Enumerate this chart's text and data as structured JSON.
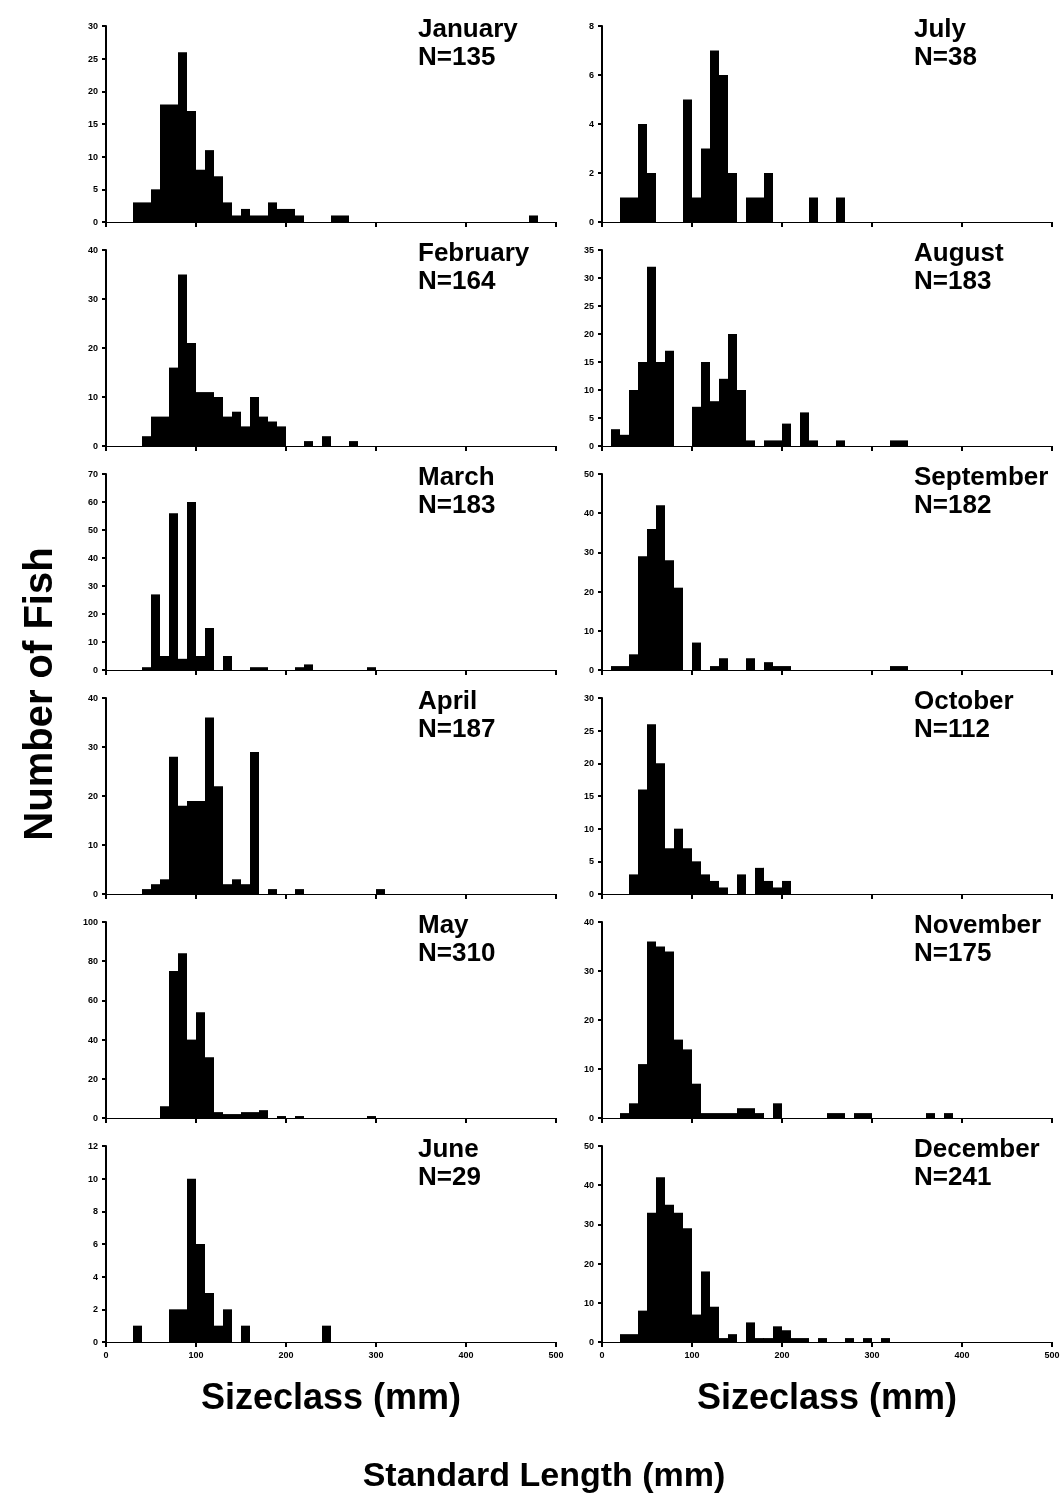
{
  "chart_data": [
    {
      "type": "histogram",
      "title": "January",
      "subtitle": "N=135",
      "color": "#000000",
      "tick_labels": "y",
      "xlim": [
        0,
        500
      ],
      "xticks": [
        0,
        100,
        200,
        300,
        400,
        500
      ],
      "ylim": [
        0,
        30
      ],
      "yticks": [
        0,
        5,
        10,
        15,
        20,
        25,
        30
      ],
      "bins": [
        30,
        40,
        50,
        60,
        70,
        80,
        90,
        100,
        110,
        120,
        130,
        140,
        150,
        160,
        170,
        180,
        190,
        200,
        210,
        220,
        230,
        240,
        250,
        260,
        270,
        280,
        290,
        300,
        310,
        320,
        330,
        340,
        350,
        360,
        370,
        380,
        390,
        400,
        410,
        420,
        430,
        440,
        450,
        460,
        470,
        480
      ],
      "values": [
        3,
        3,
        5,
        18,
        18,
        26,
        17,
        8,
        11,
        7,
        3,
        1,
        2,
        1,
        1,
        3,
        2,
        2,
        1,
        0,
        0,
        0,
        1,
        1,
        0,
        0,
        0,
        0,
        0,
        0,
        0,
        0,
        0,
        0,
        0,
        0,
        0,
        0,
        0,
        0,
        0,
        0,
        0,
        0,
        1
      ]
    },
    {
      "type": "histogram",
      "title": "July",
      "subtitle": "N=38",
      "color": "#000000",
      "tick_labels": "y",
      "xlim": [
        0,
        500
      ],
      "xticks": [
        0,
        100,
        200,
        300,
        400,
        500
      ],
      "ylim": [
        0,
        8
      ],
      "yticks": [
        0,
        2,
        4,
        6,
        8
      ],
      "bins": [
        20,
        30,
        40,
        50,
        60,
        70,
        80,
        90,
        100,
        110,
        120,
        130,
        140,
        150,
        160,
        170,
        180,
        190,
        200,
        210,
        220,
        230,
        240,
        250,
        260,
        270
      ],
      "values": [
        1,
        1,
        4,
        2,
        0,
        0,
        0,
        5,
        1,
        3,
        7,
        6,
        2,
        0,
        1,
        1,
        2,
        0,
        0,
        0,
        0,
        1,
        0,
        0,
        1
      ]
    },
    {
      "type": "histogram",
      "title": "February",
      "subtitle": "N=164",
      "color": "#000000",
      "tick_labels": "y",
      "xlim": [
        0,
        500
      ],
      "xticks": [
        0,
        100,
        200,
        300,
        400,
        500
      ],
      "ylim": [
        0,
        40
      ],
      "yticks": [
        0,
        10,
        20,
        30,
        40
      ],
      "bins": [
        40,
        50,
        60,
        70,
        80,
        90,
        100,
        110,
        120,
        130,
        140,
        150,
        160,
        170,
        180,
        190,
        200,
        210,
        220,
        230,
        240,
        250,
        260,
        270,
        280
      ],
      "values": [
        2,
        6,
        6,
        16,
        35,
        21,
        11,
        11,
        10,
        6,
        7,
        4,
        10,
        6,
        5,
        4,
        0,
        0,
        1,
        0,
        2,
        0,
        0,
        1
      ]
    },
    {
      "type": "histogram",
      "title": "August",
      "subtitle": "N=183",
      "color": "#000000",
      "tick_labels": "y",
      "xlim": [
        0,
        500
      ],
      "xticks": [
        0,
        100,
        200,
        300,
        400,
        500
      ],
      "ylim": [
        0,
        35
      ],
      "yticks": [
        0,
        5,
        10,
        15,
        20,
        25,
        30,
        35
      ],
      "bins": [
        10,
        20,
        30,
        40,
        50,
        60,
        70,
        80,
        90,
        100,
        110,
        120,
        130,
        140,
        150,
        160,
        170,
        180,
        190,
        200,
        210,
        220,
        230,
        240,
        250,
        260,
        270,
        280,
        290,
        300,
        310,
        320,
        330,
        340
      ],
      "values": [
        3,
        2,
        10,
        15,
        32,
        15,
        17,
        0,
        0,
        7,
        15,
        8,
        12,
        20,
        10,
        1,
        0,
        1,
        1,
        4,
        0,
        6,
        1,
        0,
        0,
        1,
        0,
        0,
        0,
        0,
        0,
        1,
        1
      ]
    },
    {
      "type": "histogram",
      "title": "March",
      "subtitle": "N=183",
      "color": "#000000",
      "tick_labels": "y",
      "xlim": [
        0,
        500
      ],
      "xticks": [
        0,
        100,
        200,
        300,
        400,
        500
      ],
      "ylim": [
        0,
        70
      ],
      "yticks": [
        0,
        10,
        20,
        30,
        40,
        50,
        60,
        70
      ],
      "bins": [
        40,
        50,
        60,
        70,
        80,
        90,
        100,
        110,
        120,
        130,
        140,
        150,
        160,
        170,
        180,
        190,
        200,
        210,
        220,
        230,
        240,
        250,
        260,
        270,
        280,
        290,
        300
      ],
      "values": [
        1,
        27,
        5,
        56,
        4,
        60,
        5,
        15,
        0,
        5,
        0,
        0,
        1,
        1,
        0,
        0,
        0,
        1,
        2,
        0,
        0,
        0,
        0,
        0,
        0,
        1
      ]
    },
    {
      "type": "histogram",
      "title": "September",
      "subtitle": "N=182",
      "color": "#000000",
      "tick_labels": "y",
      "xlim": [
        0,
        500
      ],
      "xticks": [
        0,
        100,
        200,
        300,
        400,
        500
      ],
      "ylim": [
        0,
        50
      ],
      "yticks": [
        0,
        10,
        20,
        30,
        40,
        50
      ],
      "bins": [
        10,
        20,
        30,
        40,
        50,
        60,
        70,
        80,
        90,
        100,
        110,
        120,
        130,
        140,
        150,
        160,
        170,
        180,
        190,
        200,
        210,
        220,
        230,
        240,
        250,
        260,
        270,
        280,
        290,
        300,
        310,
        320,
        330,
        340
      ],
      "values": [
        1,
        1,
        4,
        29,
        36,
        42,
        28,
        21,
        0,
        7,
        0,
        1,
        3,
        0,
        0,
        3,
        0,
        2,
        1,
        1,
        0,
        0,
        0,
        0,
        0,
        0,
        0,
        0,
        0,
        0,
        0,
        1,
        1
      ]
    },
    {
      "type": "histogram",
      "title": "April",
      "subtitle": "N=187",
      "color": "#000000",
      "tick_labels": "y",
      "xlim": [
        0,
        500
      ],
      "xticks": [
        0,
        100,
        200,
        300,
        400,
        500
      ],
      "ylim": [
        0,
        40
      ],
      "yticks": [
        0,
        10,
        20,
        30,
        40
      ],
      "bins": [
        40,
        50,
        60,
        70,
        80,
        90,
        100,
        110,
        120,
        130,
        140,
        150,
        160,
        170,
        180,
        190,
        200,
        210,
        220,
        230,
        240,
        250,
        260,
        270,
        280,
        290,
        300,
        310
      ],
      "values": [
        1,
        2,
        3,
        28,
        18,
        19,
        19,
        36,
        22,
        2,
        3,
        2,
        29,
        0,
        1,
        0,
        0,
        1,
        0,
        0,
        0,
        0,
        0,
        0,
        0,
        0,
        1
      ]
    },
    {
      "type": "histogram",
      "title": "October",
      "subtitle": "N=112",
      "color": "#000000",
      "tick_labels": "y",
      "xlim": [
        0,
        500
      ],
      "xticks": [
        0,
        100,
        200,
        300,
        400,
        500
      ],
      "ylim": [
        0,
        30
      ],
      "yticks": [
        0,
        5,
        10,
        15,
        20,
        25,
        30
      ],
      "bins": [
        30,
        40,
        50,
        60,
        70,
        80,
        90,
        100,
        110,
        120,
        130,
        140,
        150,
        160,
        170,
        180,
        190,
        200,
        210
      ],
      "values": [
        3,
        16,
        26,
        20,
        7,
        10,
        7,
        5,
        3,
        2,
        1,
        0,
        3,
        0,
        4,
        2,
        1,
        2
      ]
    },
    {
      "type": "histogram",
      "title": "May",
      "subtitle": "N=310",
      "color": "#000000",
      "tick_labels": "y",
      "xlim": [
        0,
        500
      ],
      "xticks": [
        0,
        100,
        200,
        300,
        400,
        500
      ],
      "ylim": [
        0,
        100
      ],
      "yticks": [
        0,
        20,
        40,
        60,
        80,
        100
      ],
      "bins": [
        60,
        70,
        80,
        90,
        100,
        110,
        120,
        130,
        140,
        150,
        160,
        170,
        180,
        190,
        200,
        210,
        220,
        230,
        240,
        250,
        260,
        270,
        280,
        290,
        300
      ],
      "values": [
        6,
        75,
        84,
        40,
        54,
        31,
        3,
        2,
        2,
        3,
        3,
        4,
        0,
        1,
        0,
        1,
        0,
        0,
        0,
        0,
        0,
        0,
        0,
        1
      ]
    },
    {
      "type": "histogram",
      "title": "November",
      "subtitle": "N=175",
      "color": "#000000",
      "tick_labels": "y",
      "xlim": [
        0,
        500
      ],
      "xticks": [
        0,
        100,
        200,
        300,
        400,
        500
      ],
      "ylim": [
        0,
        40
      ],
      "yticks": [
        0,
        10,
        20,
        30,
        40
      ],
      "bins": [
        20,
        30,
        40,
        50,
        60,
        70,
        80,
        90,
        100,
        110,
        120,
        130,
        140,
        150,
        160,
        170,
        180,
        190,
        200,
        210,
        220,
        230,
        240,
        250,
        260,
        270,
        280,
        290,
        300,
        310,
        320,
        330,
        340,
        350,
        360,
        370,
        380,
        390
      ],
      "values": [
        1,
        3,
        11,
        36,
        35,
        34,
        16,
        14,
        7,
        1,
        1,
        1,
        1,
        2,
        2,
        1,
        0,
        3,
        0,
        0,
        0,
        0,
        0,
        1,
        1,
        0,
        1,
        1,
        0,
        0,
        0,
        0,
        0,
        0,
        1,
        0,
        1
      ]
    },
    {
      "type": "histogram",
      "title": "June",
      "subtitle": "N=29",
      "xlabel": "Sizeclass (mm)",
      "color": "#000000",
      "xlim": [
        0,
        500
      ],
      "xticks": [
        0,
        100,
        200,
        300,
        400,
        500
      ],
      "ylim": [
        0,
        12
      ],
      "yticks": [
        0,
        2,
        4,
        6,
        8,
        10,
        12
      ],
      "bins": [
        30,
        40,
        50,
        60,
        70,
        80,
        90,
        100,
        110,
        120,
        130,
        140,
        150,
        160,
        170,
        180,
        190,
        200,
        210,
        220,
        230,
        240,
        250
      ],
      "values": [
        1,
        0,
        0,
        0,
        2,
        2,
        10,
        6,
        3,
        1,
        2,
        0,
        1,
        0,
        0,
        0,
        0,
        0,
        0,
        0,
        0,
        1
      ]
    },
    {
      "type": "histogram",
      "title": "December",
      "subtitle": "N=241",
      "xlabel": "Sizeclass (mm)",
      "color": "#000000",
      "xlim": [
        0,
        500
      ],
      "xticks": [
        0,
        100,
        200,
        300,
        400,
        500
      ],
      "ylim": [
        0,
        50
      ],
      "yticks": [
        0,
        10,
        20,
        30,
        40,
        50
      ],
      "bins": [
        20,
        30,
        40,
        50,
        60,
        70,
        80,
        90,
        100,
        110,
        120,
        130,
        140,
        150,
        160,
        170,
        180,
        190,
        200,
        210,
        220,
        230,
        240,
        250,
        260,
        270,
        280,
        290,
        300,
        310,
        320
      ],
      "values": [
        2,
        2,
        8,
        33,
        42,
        35,
        33,
        29,
        7,
        18,
        9,
        1,
        2,
        0,
        5,
        1,
        1,
        4,
        3,
        1,
        1,
        0,
        1,
        0,
        0,
        1,
        0,
        1,
        0,
        1
      ]
    },
    {
      "type": "other",
      "ylabel": "Number of Fish",
      "xlabel": "Standard Length (mm)"
    }
  ]
}
